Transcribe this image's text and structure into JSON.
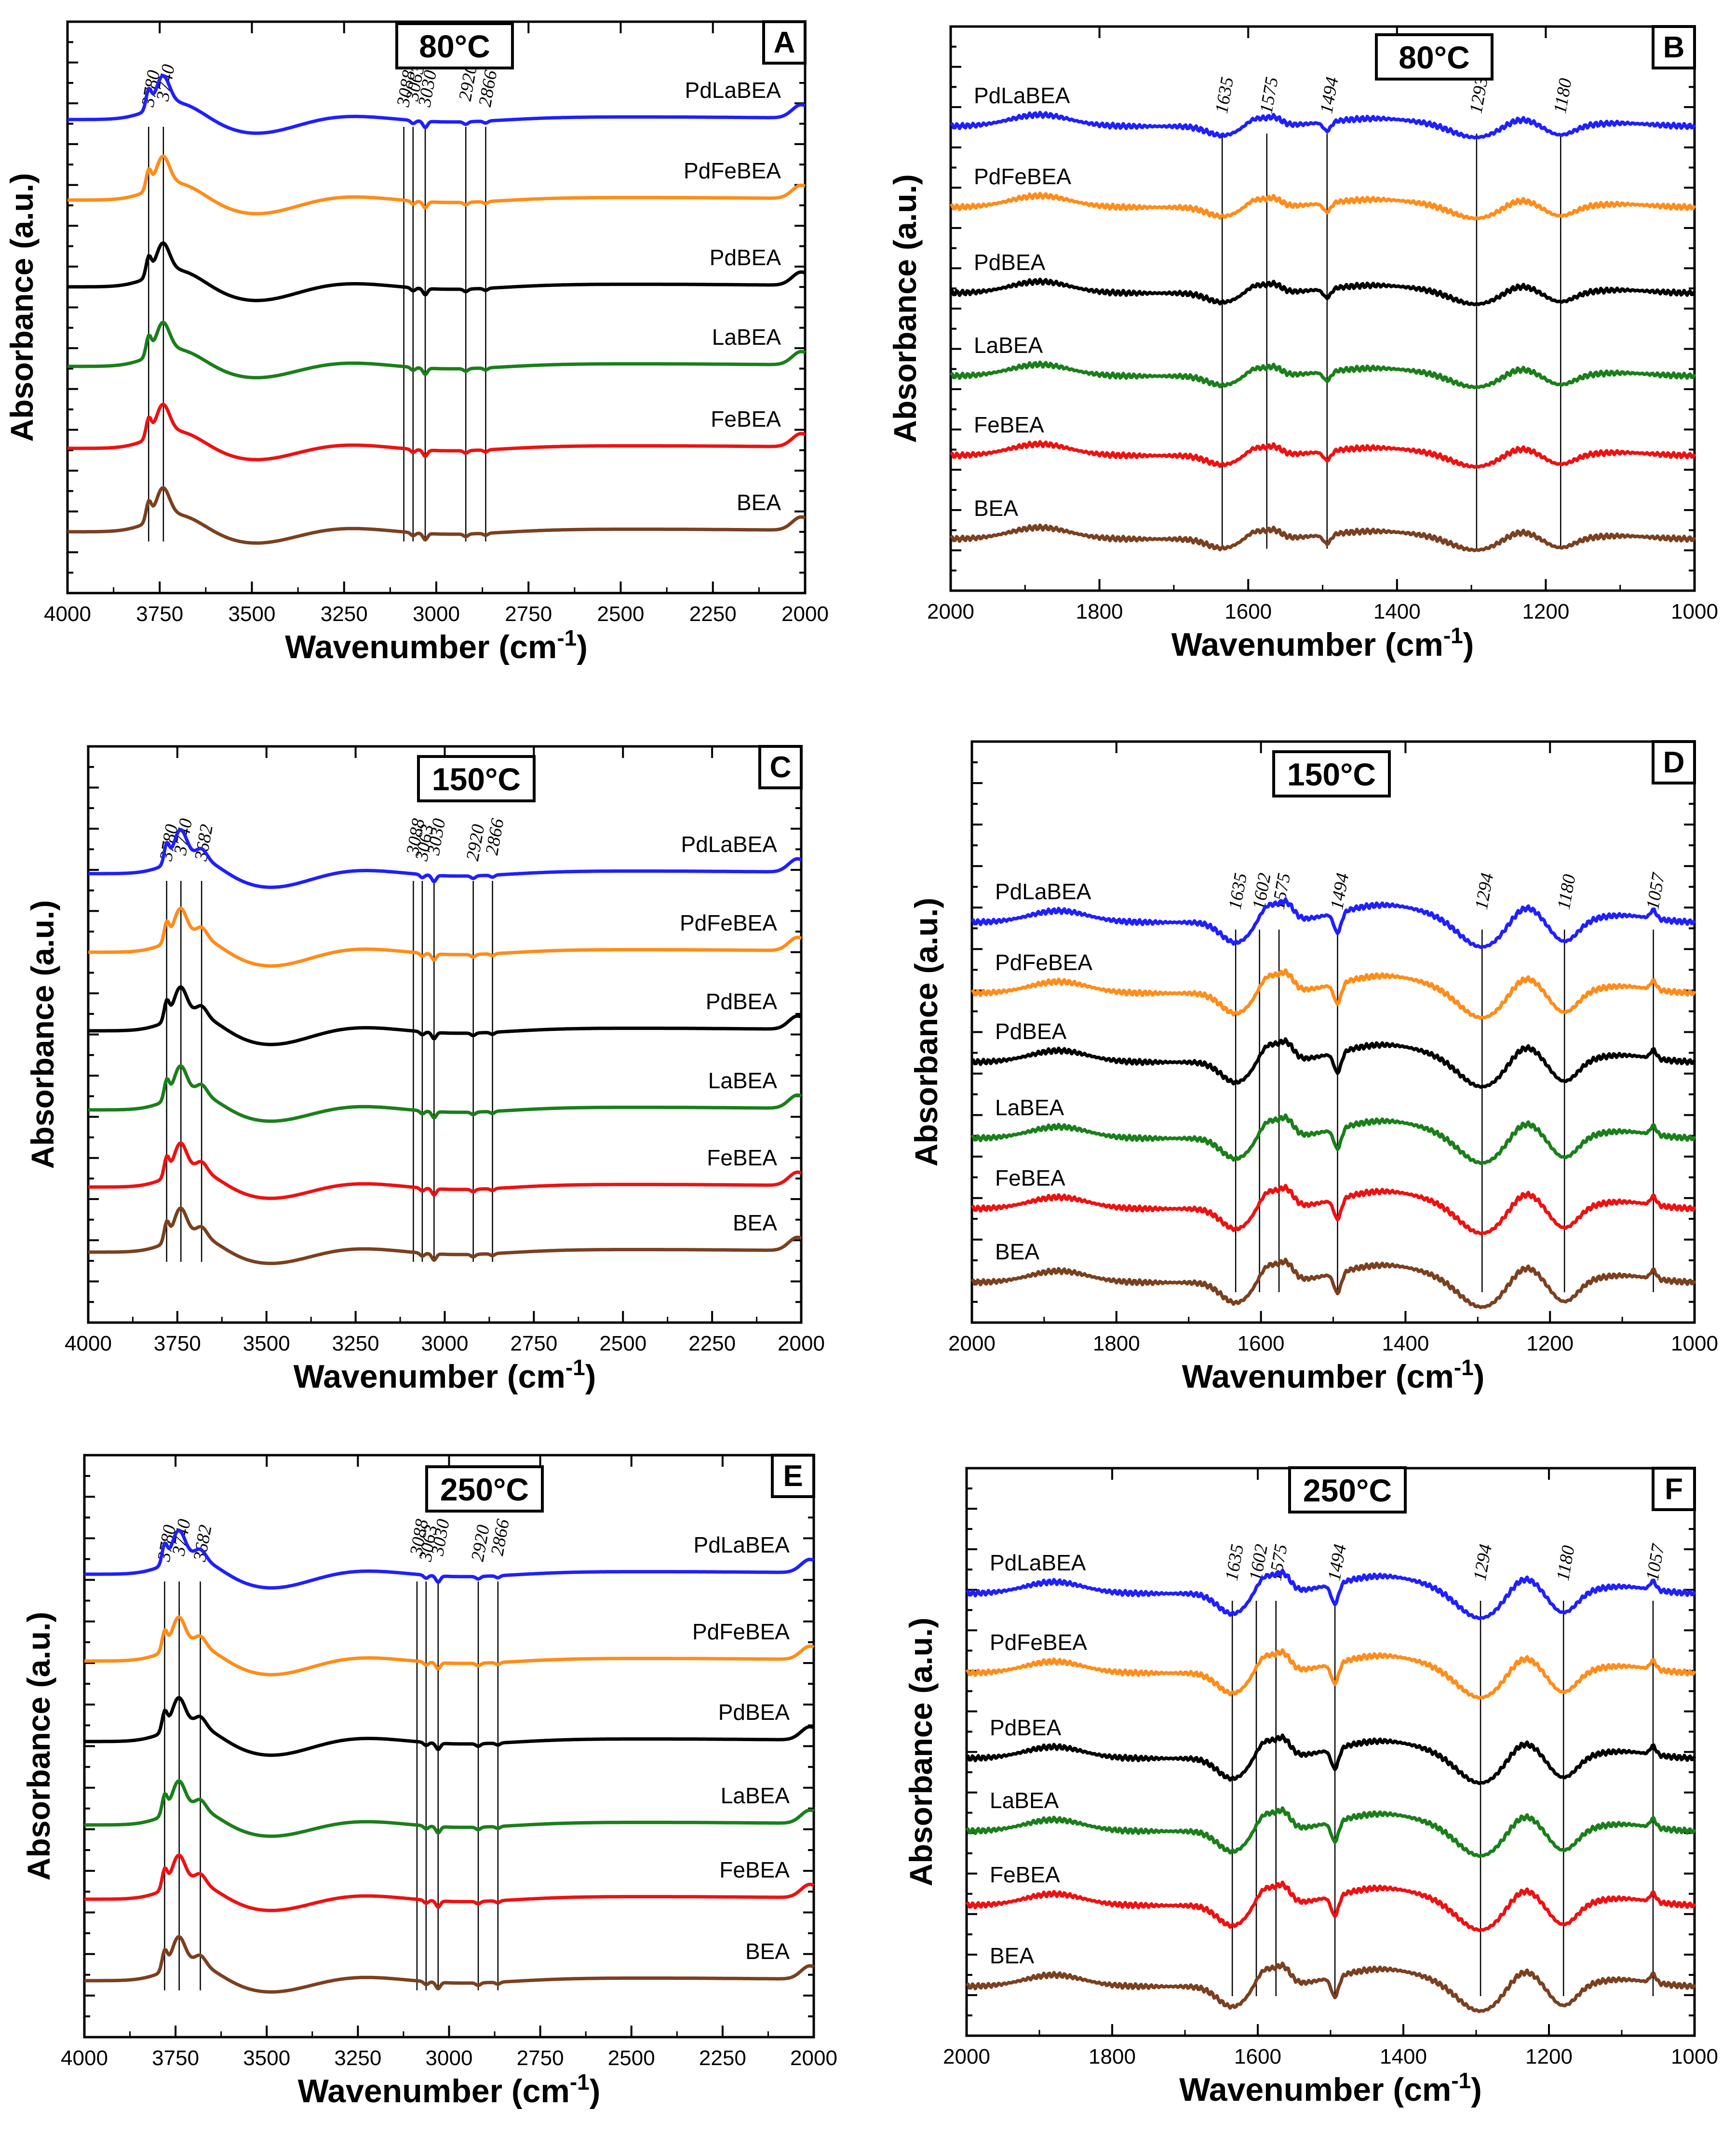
{
  "figure": {
    "ylabel": "Absorbance (a.u.)",
    "xlabel_main": "Wavenumber (cm",
    "xlabel_sup": "-1",
    "xlabel_end": ")"
  },
  "series_colors": {
    "PdLaBEA": "#1f1fff",
    "PdFeBEA": "#ff8c1a",
    "PdBEA": "#000000",
    "LaBEA": "#1a7f1a",
    "FeBEA": "#ee1111",
    "BEA": "#7a4020"
  },
  "chart_data": [
    {
      "id": "A",
      "letter": "A",
      "temperature": "80°C",
      "type": "line",
      "region": "OH",
      "xlim": [
        4000,
        2000
      ],
      "xticks": [
        4000,
        3750,
        3500,
        3250,
        3000,
        2750,
        2500,
        2250,
        2000
      ],
      "series": [
        "PdLaBEA",
        "PdFeBEA",
        "PdBEA",
        "LaBEA",
        "FeBEA",
        "BEA"
      ],
      "peaks": [
        "3780",
        "3740",
        "3088",
        "3063",
        "3030",
        "2920",
        "2866"
      ]
    },
    {
      "id": "B",
      "letter": "B",
      "temperature": "80°C",
      "type": "line",
      "region": "FP",
      "xlim": [
        2000,
        1000
      ],
      "xticks": [
        2000,
        1800,
        1600,
        1400,
        1200,
        1000
      ],
      "series": [
        "PdLaBEA",
        "PdFeBEA",
        "PdBEA",
        "LaBEA",
        "FeBEA",
        "BEA"
      ],
      "peaks": [
        "1635",
        "1575",
        "1494",
        "1293",
        "1180"
      ]
    },
    {
      "id": "C",
      "letter": "C",
      "temperature": "150°C",
      "type": "line",
      "region": "OH",
      "xlim": [
        4000,
        2000
      ],
      "xticks": [
        4000,
        3750,
        3500,
        3250,
        3000,
        2750,
        2500,
        2250,
        2000
      ],
      "series": [
        "PdLaBEA",
        "PdFeBEA",
        "PdBEA",
        "LaBEA",
        "FeBEA",
        "BEA"
      ],
      "peaks": [
        "3780",
        "3740",
        "3682",
        "3088",
        "3063",
        "3030",
        "2920",
        "2866"
      ]
    },
    {
      "id": "D",
      "letter": "D",
      "temperature": "150°C",
      "type": "line",
      "region": "FP",
      "xlim": [
        2000,
        1000
      ],
      "xticks": [
        2000,
        1800,
        1600,
        1400,
        1200,
        1000
      ],
      "series": [
        "PdLaBEA",
        "PdFeBEA",
        "PdBEA",
        "LaBEA",
        "FeBEA",
        "BEA"
      ],
      "peaks": [
        "1635",
        "1602",
        "1575",
        "1494",
        "1294",
        "1180",
        "1057"
      ]
    },
    {
      "id": "E",
      "letter": "E",
      "temperature": "250°C",
      "type": "line",
      "region": "OH",
      "xlim": [
        4000,
        2000
      ],
      "xticks": [
        4000,
        3750,
        3500,
        3250,
        3000,
        2750,
        2500,
        2250,
        2000
      ],
      "series": [
        "PdLaBEA",
        "PdFeBEA",
        "PdBEA",
        "LaBEA",
        "FeBEA",
        "BEA"
      ],
      "peaks": [
        "3780",
        "3740",
        "3682",
        "3088",
        "3063",
        "3030",
        "2920",
        "2866"
      ]
    },
    {
      "id": "F",
      "letter": "F",
      "temperature": "250°C",
      "type": "line",
      "region": "FP",
      "xlim": [
        2000,
        1000
      ],
      "xticks": [
        2000,
        1800,
        1600,
        1400,
        1200,
        1000
      ],
      "series": [
        "PdLaBEA",
        "PdFeBEA",
        "PdBEA",
        "LaBEA",
        "FeBEA",
        "BEA"
      ],
      "peaks": [
        "1635",
        "1602",
        "1575",
        "1494",
        "1294",
        "1180",
        "1057"
      ]
    }
  ]
}
